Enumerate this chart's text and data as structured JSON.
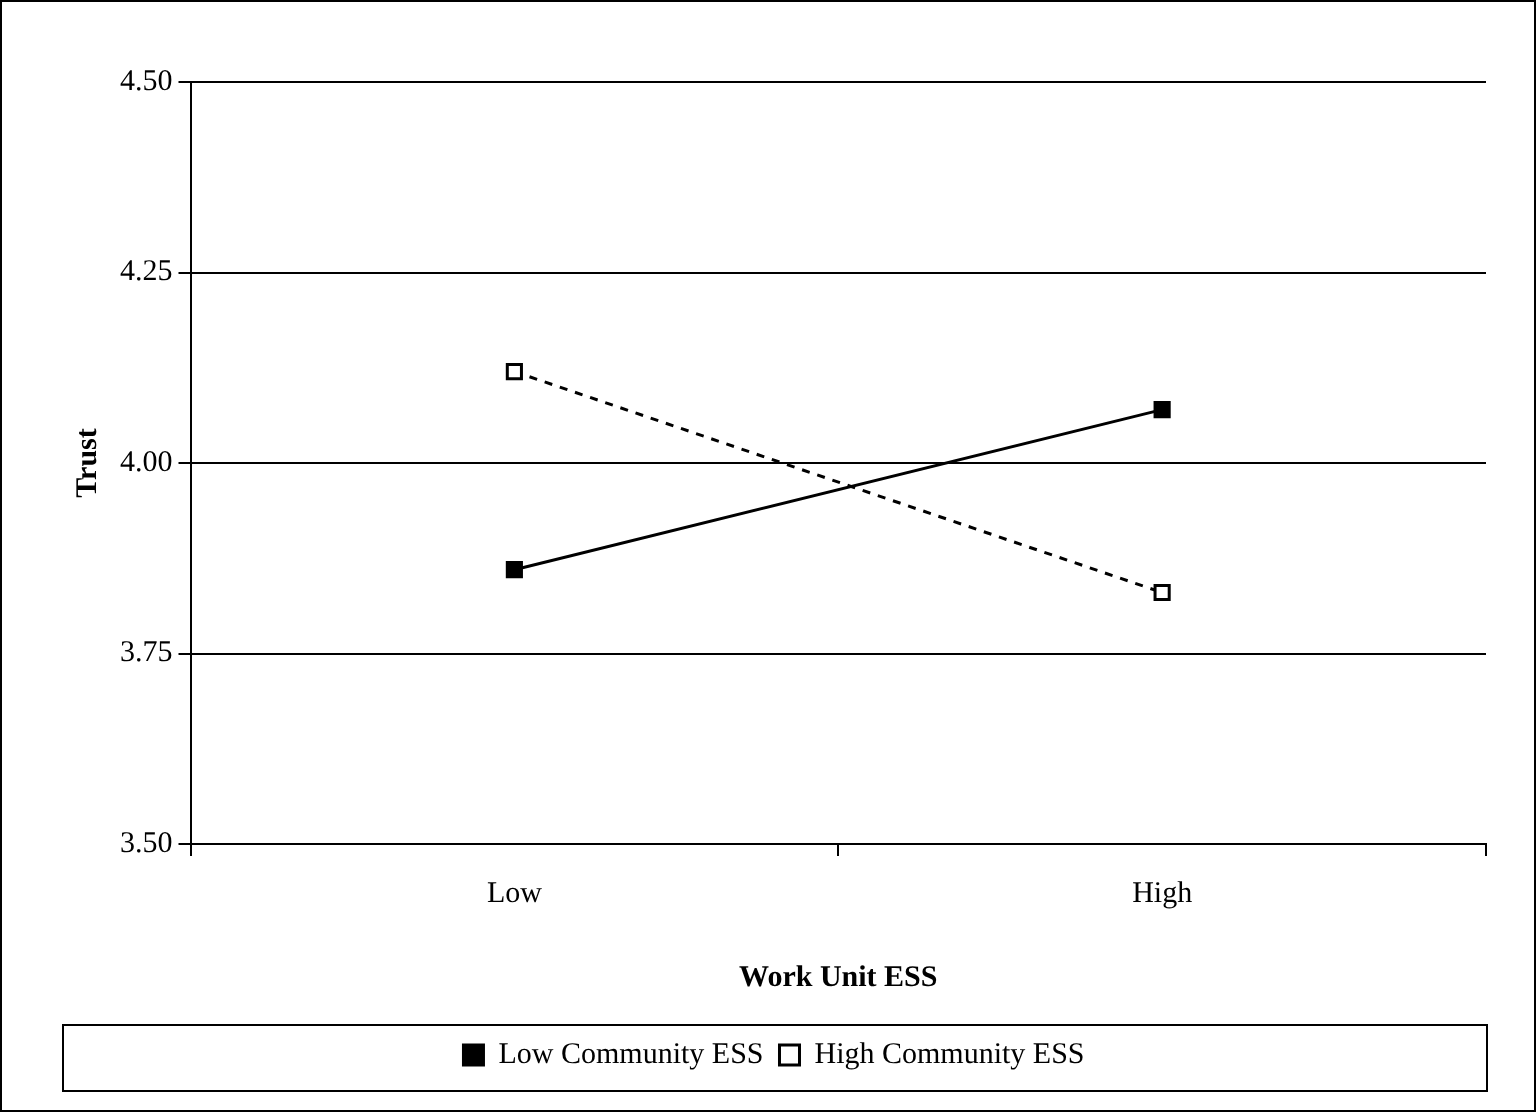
{
  "chart_data": {
    "type": "line",
    "xlabel": "Work Unit ESS",
    "ylabel": "Trust",
    "categories": [
      "Low",
      "High"
    ],
    "series": [
      {
        "name": "Low Community ESS",
        "color": "#000000",
        "values": [
          3.86,
          4.07
        ],
        "marker": "square",
        "line_style": "solid"
      },
      {
        "name": "High Community ESS",
        "color": "#000000",
        "values": [
          4.12,
          3.83
        ],
        "marker": "square",
        "line_style": "dashed"
      }
    ],
    "ylim": [
      3.5,
      4.5
    ],
    "yticks": [
      {
        "value": 3.5,
        "label": "3.50"
      },
      {
        "value": 3.75,
        "label": "3.75"
      },
      {
        "value": 4.0,
        "label": "4.00"
      },
      {
        "value": 4.25,
        "label": "4.25"
      },
      {
        "value": 4.5,
        "label": "4.50"
      }
    ],
    "grid": "y",
    "legend": "bottom"
  }
}
